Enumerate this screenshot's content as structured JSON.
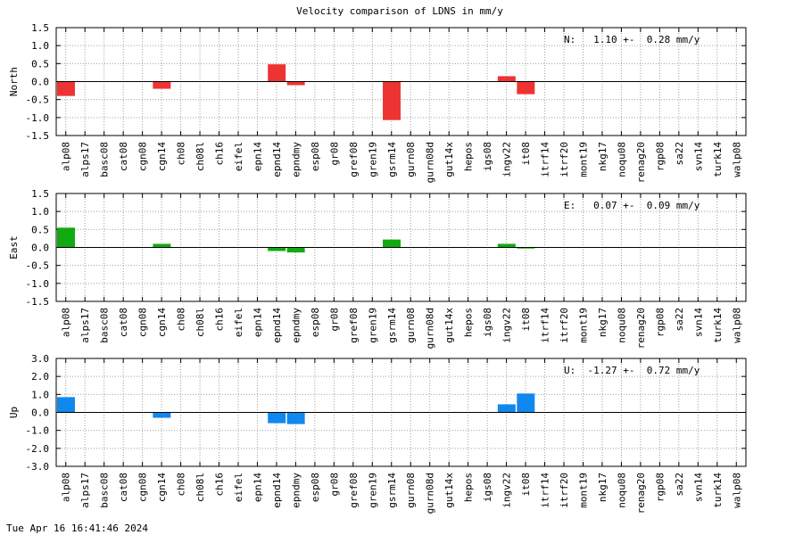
{
  "footer": {
    "timestamp": "Tue Apr 16 16:41:46 2024"
  },
  "chart_data": {
    "type": "bar",
    "title": "Velocity comparison of LDNS in mm/y",
    "categories": [
      "alp08",
      "alps17",
      "basc08",
      "cat08",
      "cgn08",
      "cgn14",
      "ch08",
      "ch08l",
      "ch16",
      "eifel",
      "epn14",
      "epnd14",
      "epndmy",
      "esp08",
      "gr08",
      "gref08",
      "gren19",
      "gsrm14",
      "gurn08",
      "gurn08d",
      "gut14x",
      "hepos",
      "igs08",
      "ingv22",
      "it08",
      "itrf14",
      "itrf20",
      "mont19",
      "nkg17",
      "noqu08",
      "renag20",
      "rgp08",
      "sa22",
      "svn14",
      "turk14",
      "walp08"
    ],
    "grid": true,
    "panels": [
      {
        "ylabel": "North",
        "color": "#ee3333",
        "ylim": [
          -1.5,
          1.5
        ],
        "yticks": [
          "-1.5",
          "-1.0",
          "-0.5",
          "0.0",
          "0.5",
          "1.0",
          "1.5"
        ],
        "annotation": "N:   1.10 +-  0.28 mm/y",
        "values": [
          -0.4,
          0,
          0,
          0,
          0,
          -0.2,
          0,
          0,
          0,
          0,
          0,
          0.48,
          -0.1,
          0,
          0,
          0,
          0,
          -1.07,
          0,
          0,
          0,
          0,
          0,
          0.15,
          -0.35,
          0,
          0,
          0,
          0,
          0,
          0,
          0,
          0,
          0,
          0,
          0
        ]
      },
      {
        "ylabel": "East",
        "color": "#11aa11",
        "ylim": [
          -1.5,
          1.5
        ],
        "yticks": [
          "-1.5",
          "-1.0",
          "-0.5",
          "0.0",
          "0.5",
          "1.0",
          "1.5"
        ],
        "annotation": "E:   0.07 +-  0.09 mm/y",
        "values": [
          0.55,
          0,
          0,
          0,
          0,
          0.1,
          0,
          0,
          0,
          0,
          0,
          -0.1,
          -0.14,
          0,
          0,
          0,
          0,
          0.22,
          0,
          0,
          0,
          0,
          0,
          0.1,
          -0.03,
          0,
          0,
          0,
          0,
          0,
          0,
          0,
          0,
          0,
          0,
          0
        ]
      },
      {
        "ylabel": "Up",
        "color": "#1188ee",
        "ylim": [
          -3.0,
          3.0
        ],
        "yticks": [
          "-3.0",
          "-2.0",
          "-1.0",
          "0.0",
          "1.0",
          "2.0",
          "3.0"
        ],
        "annotation": "U:  -1.27 +-  0.72 mm/y",
        "values": [
          0.85,
          0,
          0,
          0,
          0,
          -0.3,
          0,
          0,
          0,
          0,
          0,
          -0.6,
          -0.65,
          0,
          0,
          0,
          0,
          0,
          0,
          0,
          0,
          0,
          0,
          0.45,
          1.05,
          0,
          0,
          0,
          0,
          0,
          0,
          0,
          0,
          0,
          0,
          0
        ]
      }
    ]
  }
}
